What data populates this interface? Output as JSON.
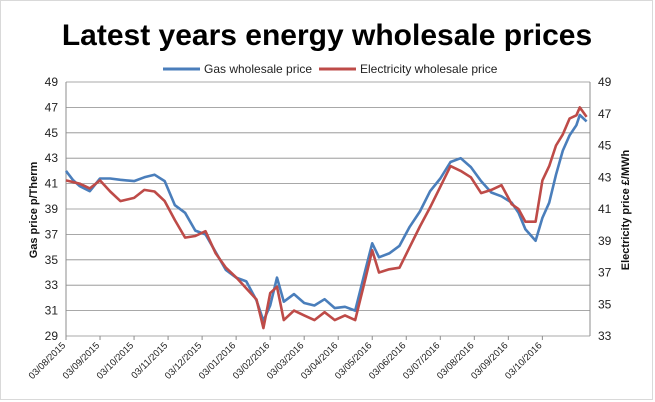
{
  "chart_data": {
    "type": "line",
    "title": "Latest years energy wholesale prices",
    "xlabel": "",
    "ylabel_left": "Gas price p/Therm",
    "ylabel_right": "Electricity price £/MWh",
    "ylim_left": [
      29,
      49
    ],
    "ylim_right": [
      33,
      49
    ],
    "yticks_left": [
      29,
      31,
      33,
      35,
      37,
      39,
      41,
      43,
      45,
      47,
      49
    ],
    "yticks_right": [
      33,
      35,
      37,
      39,
      41,
      43,
      45,
      47,
      49
    ],
    "x_tick_labels": [
      "03/08/2015",
      "03/09/2015",
      "03/10/2015",
      "03/11/2015",
      "03/12/2015",
      "03/01/2016",
      "03/02/2016",
      "03/03/2016",
      "03/04/2016",
      "03/05/2016",
      "03/06/2016",
      "03/07/2016",
      "03/08/2016",
      "03/09/2016",
      "03/10/2016"
    ],
    "grid": true,
    "legend_position": "top",
    "x_units": "months since 03/08/2015",
    "series": [
      {
        "name": "Gas wholesale price",
        "axis": "left",
        "color": "#4a7ebb",
        "x": [
          0,
          0.2,
          0.4,
          0.7,
          1.0,
          1.3,
          1.6,
          2.0,
          2.3,
          2.6,
          2.9,
          3.2,
          3.5,
          3.8,
          4.1,
          4.4,
          4.7,
          5.0,
          5.3,
          5.6,
          5.8,
          6.0,
          6.2,
          6.4,
          6.7,
          7.0,
          7.3,
          7.6,
          7.9,
          8.2,
          8.5,
          8.8,
          9.0,
          9.2,
          9.5,
          9.8,
          10.1,
          10.4,
          10.7,
          11.0,
          11.3,
          11.6,
          11.9,
          12.2,
          12.5,
          12.8,
          13.1,
          13.3,
          13.5,
          13.8,
          14.0,
          14.2,
          14.4,
          14.6,
          14.8,
          15.0,
          15.1,
          15.3
        ],
        "values": [
          42.0,
          41.3,
          40.8,
          40.4,
          41.4,
          41.4,
          41.3,
          41.2,
          41.5,
          41.7,
          41.2,
          39.3,
          38.7,
          37.3,
          37.0,
          35.6,
          34.2,
          33.6,
          33.3,
          31.8,
          30.2,
          31.4,
          33.6,
          31.7,
          32.3,
          31.6,
          31.4,
          31.9,
          31.2,
          31.3,
          31.0,
          34.2,
          36.3,
          35.2,
          35.5,
          36.1,
          37.6,
          38.8,
          40.4,
          41.4,
          42.7,
          43.0,
          42.3,
          41.2,
          40.3,
          40.0,
          39.5,
          38.7,
          37.4,
          36.5,
          38.3,
          39.5,
          41.7,
          43.6,
          44.8,
          45.6,
          46.4,
          45.9
        ]
      },
      {
        "name": "Electricity wholesale price",
        "axis": "right",
        "color": "#be4b48",
        "x": [
          0,
          0.2,
          0.4,
          0.7,
          1.0,
          1.3,
          1.6,
          2.0,
          2.3,
          2.6,
          2.9,
          3.2,
          3.5,
          3.8,
          4.1,
          4.4,
          4.7,
          5.0,
          5.3,
          5.6,
          5.8,
          6.0,
          6.2,
          6.4,
          6.7,
          7.0,
          7.3,
          7.6,
          7.9,
          8.2,
          8.5,
          8.8,
          9.0,
          9.2,
          9.5,
          9.8,
          10.1,
          10.4,
          10.7,
          11.0,
          11.3,
          11.6,
          11.9,
          12.2,
          12.5,
          12.8,
          13.1,
          13.3,
          13.5,
          13.8,
          14.0,
          14.2,
          14.4,
          14.6,
          14.8,
          15.0,
          15.1,
          15.3
        ],
        "values": [
          42.8,
          42.7,
          42.6,
          42.3,
          42.8,
          42.1,
          41.5,
          41.7,
          42.2,
          42.1,
          41.5,
          40.3,
          39.2,
          39.3,
          39.6,
          38.2,
          37.3,
          36.7,
          36.0,
          35.3,
          33.5,
          35.7,
          36.1,
          34.0,
          34.6,
          34.3,
          34.0,
          34.5,
          34.0,
          34.3,
          34.0,
          36.6,
          38.4,
          37.0,
          37.2,
          37.3,
          38.6,
          39.9,
          41.1,
          42.4,
          43.7,
          43.4,
          43.0,
          42.0,
          42.2,
          42.5,
          41.3,
          41.0,
          40.2,
          40.2,
          42.8,
          43.7,
          45.0,
          45.7,
          46.7,
          46.9,
          47.4,
          46.8
        ]
      }
    ]
  }
}
